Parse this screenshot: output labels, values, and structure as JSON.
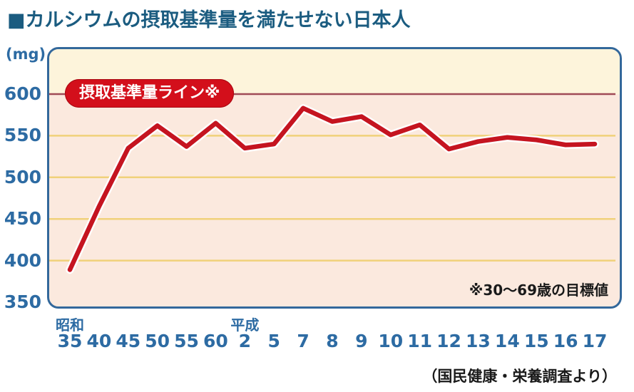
{
  "page": {
    "title": "■カルシウムの摂取基準量を満たせない日本人",
    "source_note": "（国民健康・栄養調査より）"
  },
  "chart_data": {
    "type": "line",
    "title": "カルシウムの摂取基準量を満たせない日本人",
    "unit_label": "(mg)",
    "categories": [
      "35",
      "40",
      "45",
      "50",
      "55",
      "60",
      "2",
      "5",
      "7",
      "8",
      "9",
      "10",
      "11",
      "12",
      "13",
      "14",
      "15",
      "16",
      "17"
    ],
    "era_labels": [
      {
        "label": "昭和",
        "index": 0
      },
      {
        "label": "平成",
        "index": 6
      }
    ],
    "values": [
      389,
      465,
      535,
      562,
      537,
      565,
      535,
      540,
      583,
      567,
      573,
      551,
      563,
      534,
      543,
      548,
      545,
      539,
      540
    ],
    "ylim": [
      350,
      600
    ],
    "yticks": [
      600,
      550,
      500,
      450,
      400,
      350
    ],
    "grid": true,
    "reference_line": {
      "value": 600,
      "label": "摂取基準量ライン※"
    },
    "annotation": "※30〜69歳の目標値",
    "legend_position": "none",
    "colors": {
      "title_blue": "#1b5c80",
      "axis_blue": "#2d6ba3",
      "border_blue": "#33689b",
      "plot_bg_pink": "#fbe9de",
      "plot_bg_cream": "#fdf4db",
      "gridline_yellow": "#f0d17a",
      "reference_line_red": "#a04a56",
      "data_line_red": "#c51420",
      "line_casing_white": "#ffffff",
      "badge_red": "#d30f1b",
      "text_black": "#1a1a1a"
    }
  }
}
